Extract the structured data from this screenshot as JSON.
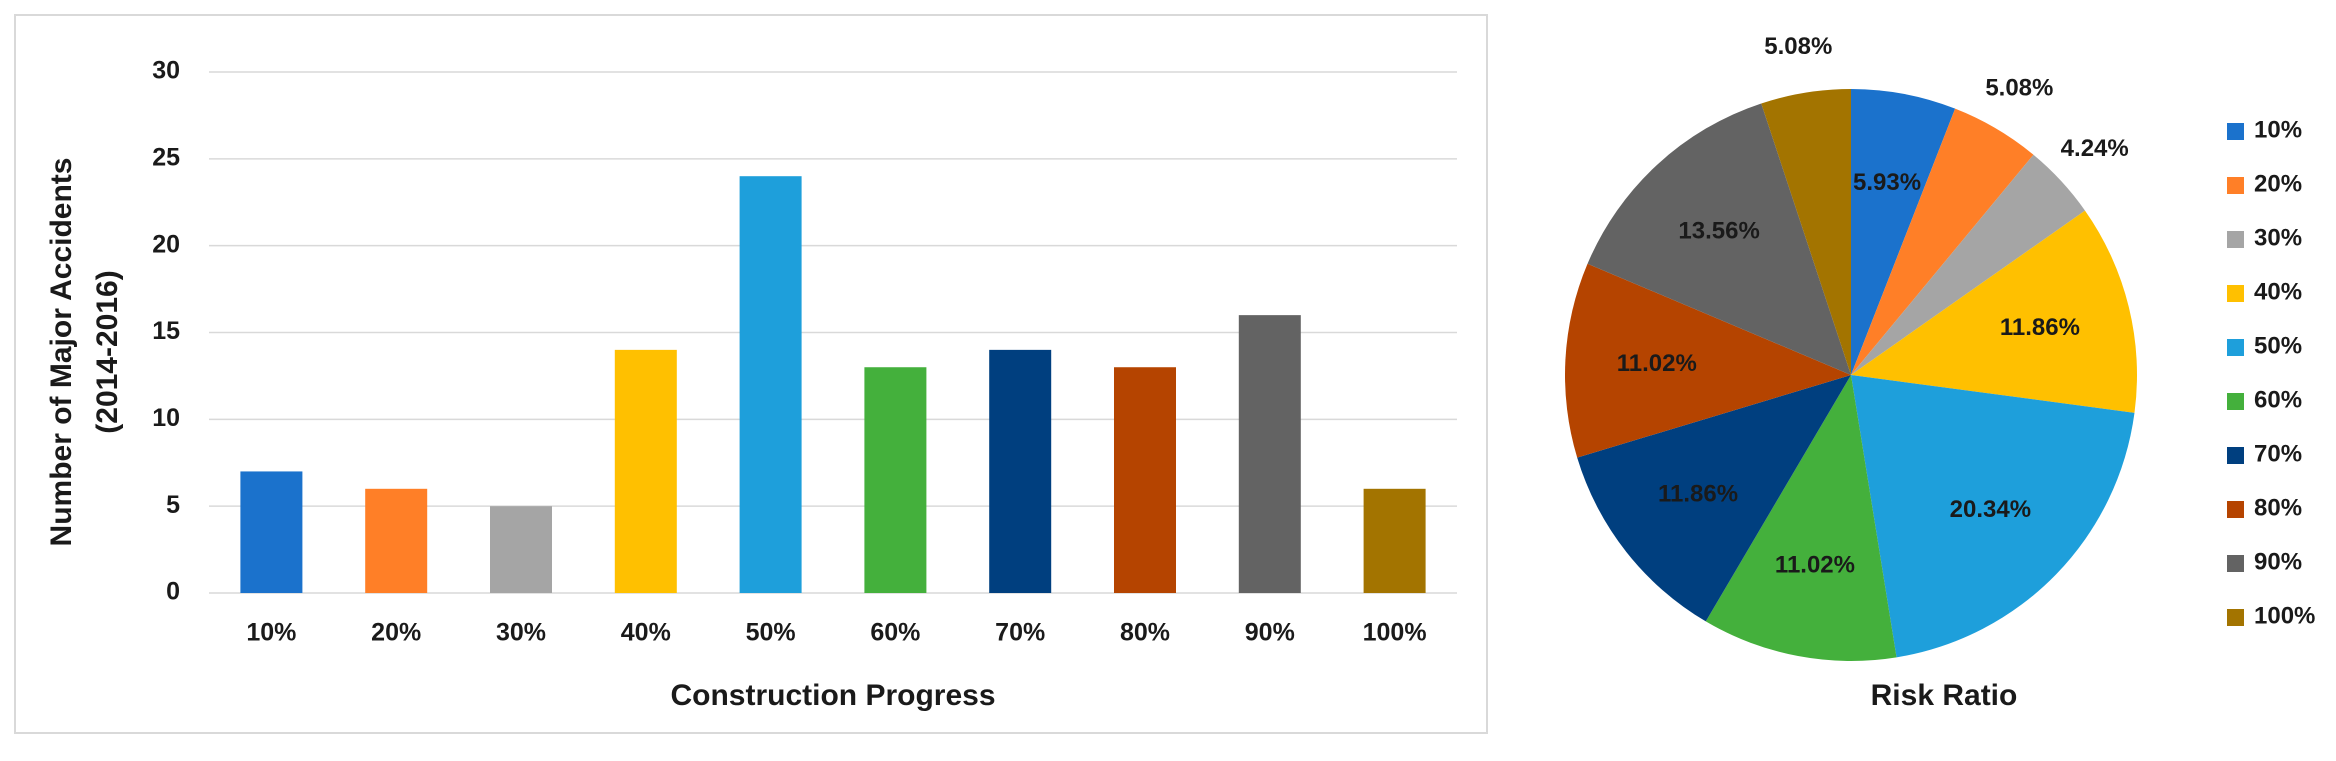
{
  "chart_data": [
    {
      "type": "bar",
      "ylabel": [
        "Number of Major Accidents",
        "(2014-2016)"
      ],
      "xlabel": "Construction Progress",
      "categories": [
        "10%",
        "20%",
        "30%",
        "40%",
        "50%",
        "60%",
        "70%",
        "80%",
        "90%",
        "100%"
      ],
      "values": [
        7,
        6,
        5,
        14,
        24,
        13,
        14,
        13,
        16,
        6
      ],
      "colors": [
        "#1b72cc",
        "#ff7f27",
        "#a5a5a5",
        "#ffc000",
        "#1e9fdb",
        "#44b03c",
        "#003f7f",
        "#b54400",
        "#636363",
        "#a37400"
      ],
      "ylim": [
        0,
        30
      ],
      "yticks": [
        0,
        5,
        10,
        15,
        20,
        25,
        30
      ],
      "grid": true
    },
    {
      "type": "pie",
      "title": "Risk Ratio",
      "categories": [
        "10%",
        "20%",
        "30%",
        "40%",
        "50%",
        "60%",
        "70%",
        "80%",
        "90%",
        "100%"
      ],
      "values": [
        5.93,
        5.08,
        4.24,
        11.86,
        20.34,
        11.02,
        11.86,
        11.02,
        13.56,
        5.08
      ],
      "value_labels": [
        "5.93%",
        "5.08%",
        "4.24%",
        "11.86%",
        "20.34%",
        "11.02%",
        "11.86%",
        "11.02%",
        "13.56%",
        "5.08%"
      ],
      "colors": [
        "#1b72cc",
        "#ff7f27",
        "#a5a5a5",
        "#ffc000",
        "#1e9fdb",
        "#44b03c",
        "#003f7f",
        "#b54400",
        "#636363",
        "#a37400"
      ],
      "legend": "right"
    }
  ]
}
